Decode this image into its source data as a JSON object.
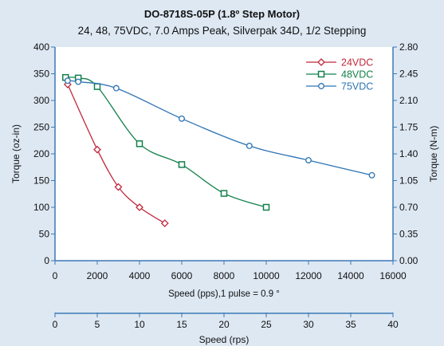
{
  "chart_data": {
    "type": "line",
    "title": "DO-8718S-05P (1.8º Step Motor)",
    "subtitle": "24, 48, 75VDC, 7.0 Amps Peak, Silverpak 34D, 1/2 Stepping",
    "xlabel": "Speed (pps),1 pulse = 0.9  °",
    "ylabel": "Torque (oz-in)",
    "y2label": "Torque (N-m)",
    "x2label": "Speed (rps)",
    "xlim": [
      0,
      16000
    ],
    "ylim": [
      0,
      400
    ],
    "xticks": [
      "0",
      "2000",
      "4000",
      "6000",
      "8000",
      "10000",
      "12000",
      "14000",
      "16000"
    ],
    "yticks": [
      "0",
      "50",
      "100",
      "150",
      "200",
      "250",
      "300",
      "350",
      "400"
    ],
    "y2ticks": [
      "0.00",
      "0.35",
      "0.70",
      "1.05",
      "1.40",
      "1.75",
      "2.10",
      "2.45",
      "2.80"
    ],
    "x2ticks": [
      "0",
      "5",
      "10",
      "15",
      "20",
      "25",
      "30",
      "35",
      "40"
    ],
    "legend_position": "top-right",
    "grid": false,
    "series": [
      {
        "name": "24VDC",
        "color": "#c0283c",
        "marker": "diamond",
        "x": [
          600,
          2000,
          3000,
          4000,
          5200
        ],
        "y": [
          330,
          208,
          138,
          100,
          70
        ]
      },
      {
        "name": "48VDC",
        "color": "#13804a",
        "marker": "square",
        "x": [
          500,
          1100,
          2000,
          4000,
          6000,
          8000,
          10000
        ],
        "y": [
          343,
          342,
          326,
          219,
          180,
          126,
          100
        ]
      },
      {
        "name": "75VDC",
        "color": "#2d73b3",
        "marker": "circle",
        "x": [
          600,
          1100,
          2900,
          6000,
          9200,
          12000,
          15000
        ],
        "y": [
          337,
          335,
          323,
          266,
          215,
          188,
          160
        ]
      }
    ]
  }
}
